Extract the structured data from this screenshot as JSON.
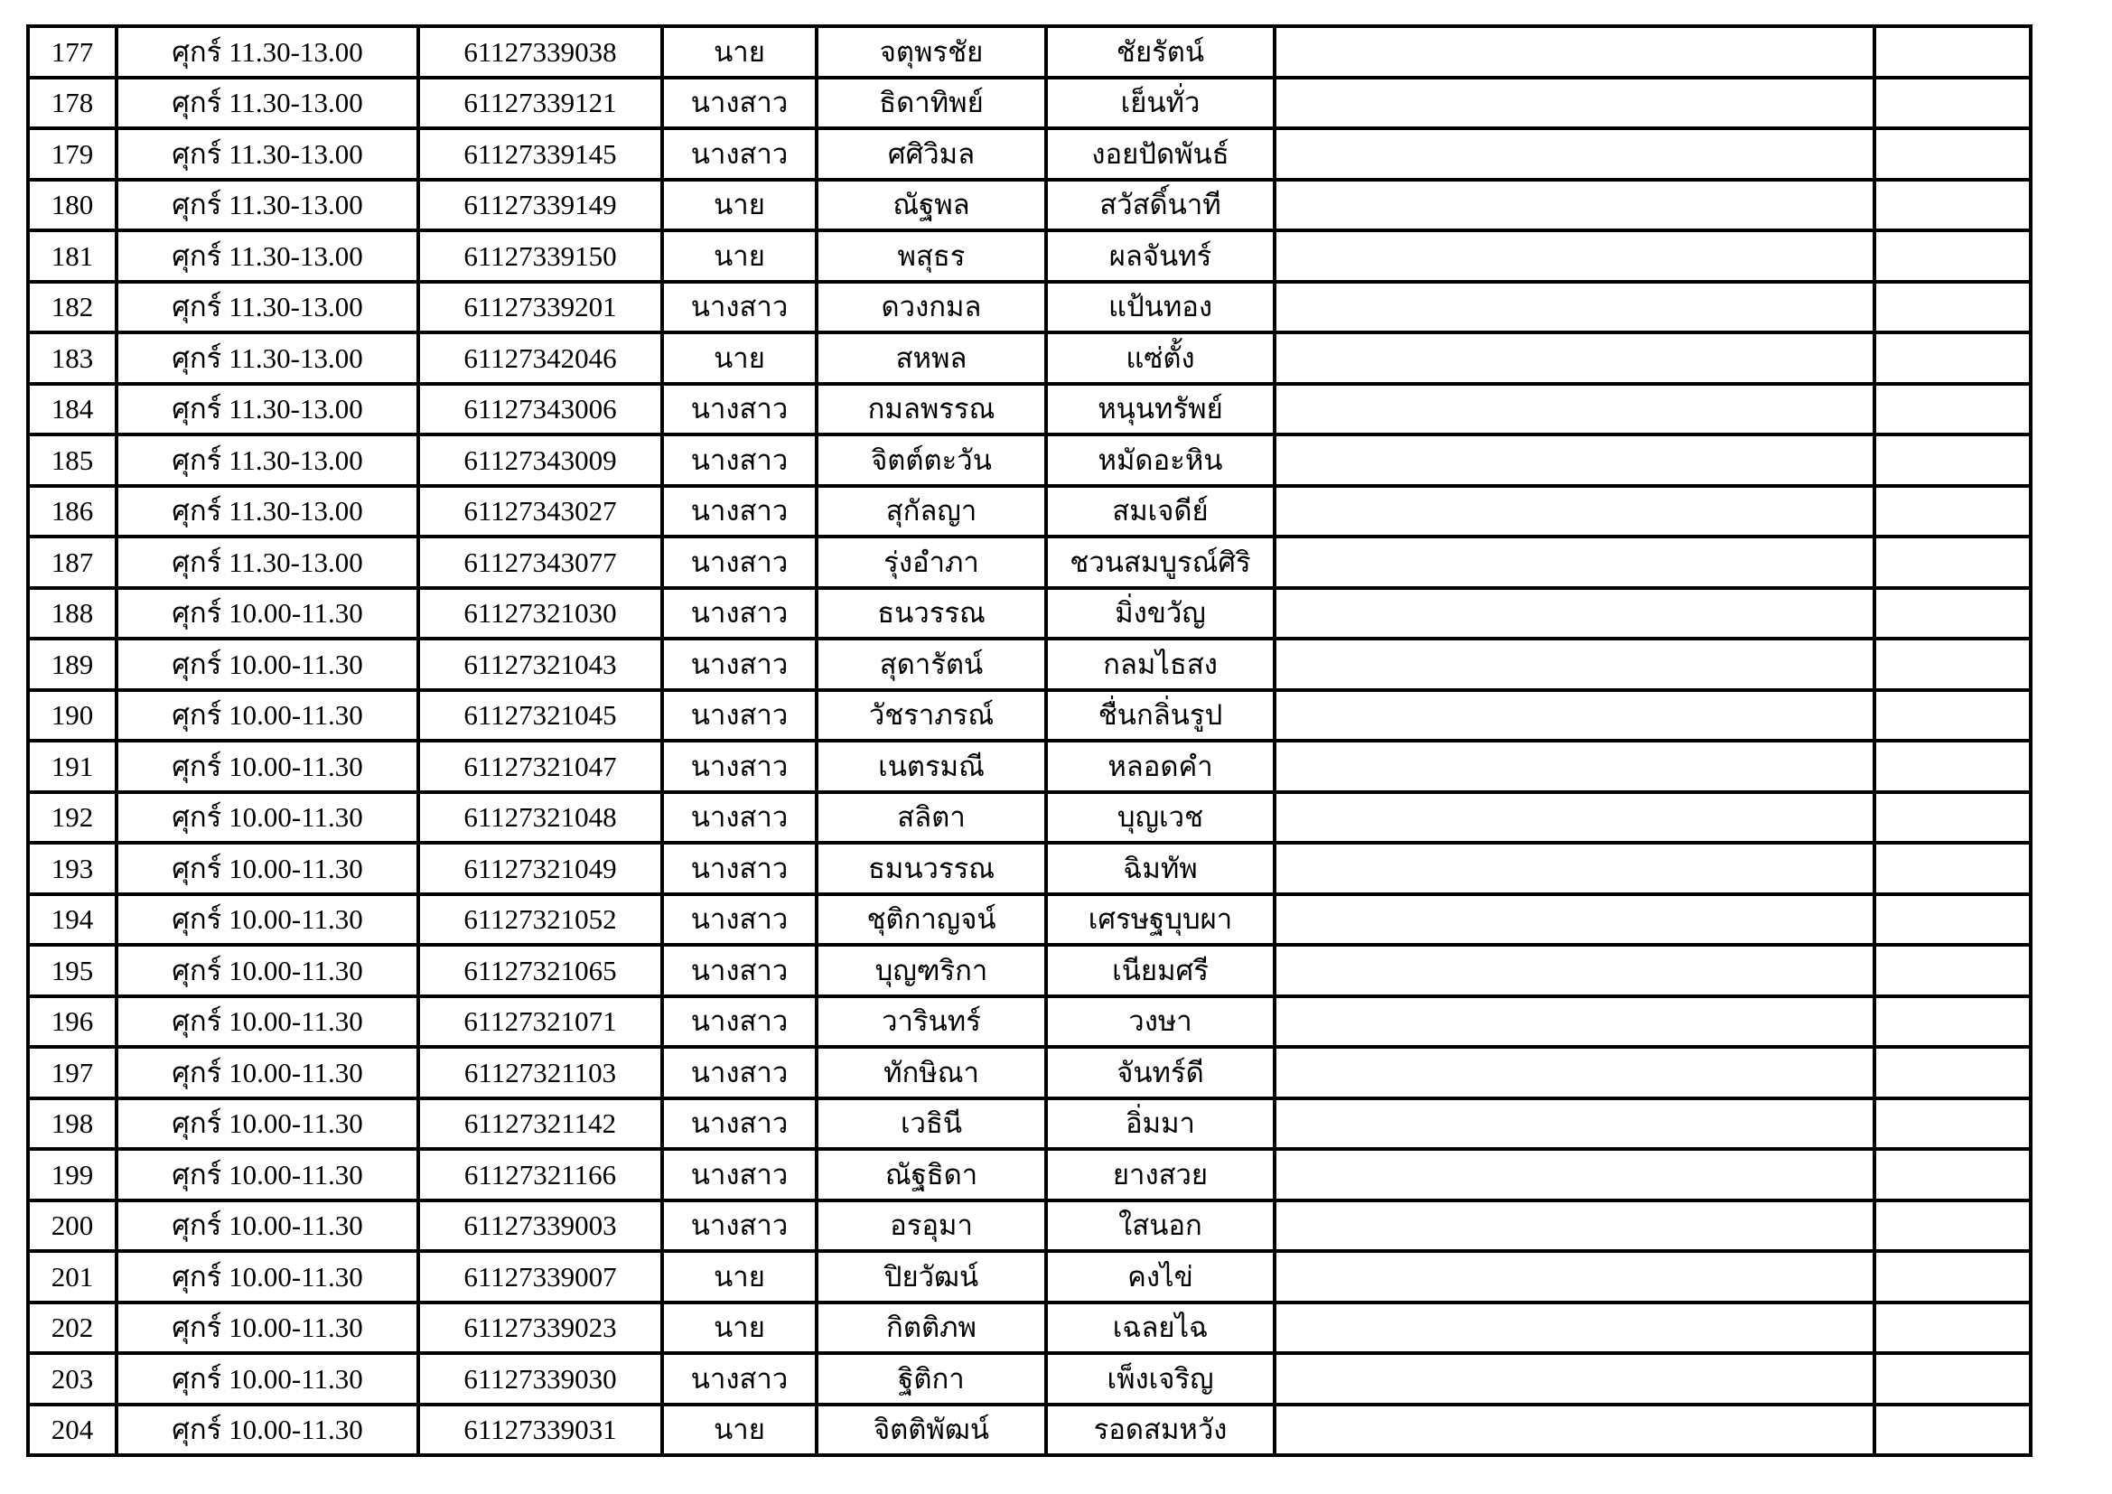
{
  "page": {
    "background_color": "#ffffff",
    "border_color": "#000000",
    "text_color": "#000000"
  },
  "table": {
    "columns": [
      {
        "key": "no",
        "name": "row-number-cell"
      },
      {
        "key": "schedule",
        "name": "day-time-cell"
      },
      {
        "key": "student_id",
        "name": "student-id-cell"
      },
      {
        "key": "title",
        "name": "title-prefix-cell"
      },
      {
        "key": "first_name",
        "name": "first-name-cell"
      },
      {
        "key": "last_name",
        "name": "last-name-cell"
      },
      {
        "key": "blank1",
        "name": "empty-wide-cell"
      },
      {
        "key": "blank2",
        "name": "empty-narrow-cell"
      }
    ],
    "rows": [
      {
        "no": "177",
        "schedule": "ศุกร์ 11.30-13.00",
        "student_id": "61127339038",
        "title": "นาย",
        "first_name": "จตุพรชัย",
        "last_name": "ชัยรัตน์",
        "blank1": "",
        "blank2": ""
      },
      {
        "no": "178",
        "schedule": "ศุกร์ 11.30-13.00",
        "student_id": "61127339121",
        "title": "นางสาว",
        "first_name": "ธิดาทิพย์",
        "last_name": "เย็นทั่ว",
        "blank1": "",
        "blank2": ""
      },
      {
        "no": "179",
        "schedule": "ศุกร์ 11.30-13.00",
        "student_id": "61127339145",
        "title": "นางสาว",
        "first_name": "ศศิวิมล",
        "last_name": "งอยปัดพันธ์",
        "blank1": "",
        "blank2": ""
      },
      {
        "no": "180",
        "schedule": "ศุกร์ 11.30-13.00",
        "student_id": "61127339149",
        "title": "นาย",
        "first_name": "ณัฐพล",
        "last_name": "สวัสดิ์นาที",
        "blank1": "",
        "blank2": ""
      },
      {
        "no": "181",
        "schedule": "ศุกร์ 11.30-13.00",
        "student_id": "61127339150",
        "title": "นาย",
        "first_name": "พสุธร",
        "last_name": "ผลจันทร์",
        "blank1": "",
        "blank2": ""
      },
      {
        "no": "182",
        "schedule": "ศุกร์ 11.30-13.00",
        "student_id": "61127339201",
        "title": "นางสาว",
        "first_name": "ดวงกมล",
        "last_name": "แป้นทอง",
        "blank1": "",
        "blank2": ""
      },
      {
        "no": "183",
        "schedule": "ศุกร์ 11.30-13.00",
        "student_id": "61127342046",
        "title": "นาย",
        "first_name": "สหพล",
        "last_name": "แซ่ตั้ง",
        "blank1": "",
        "blank2": ""
      },
      {
        "no": "184",
        "schedule": "ศุกร์ 11.30-13.00",
        "student_id": "61127343006",
        "title": "นางสาว",
        "first_name": "กมลพรรณ",
        "last_name": "หนุนทรัพย์",
        "blank1": "",
        "blank2": ""
      },
      {
        "no": "185",
        "schedule": "ศุกร์ 11.30-13.00",
        "student_id": "61127343009",
        "title": "นางสาว",
        "first_name": "จิตต์ตะวัน",
        "last_name": "หมัดอะหิน",
        "blank1": "",
        "blank2": ""
      },
      {
        "no": "186",
        "schedule": "ศุกร์ 11.30-13.00",
        "student_id": "61127343027",
        "title": "นางสาว",
        "first_name": "สุกัลญา",
        "last_name": "สมเจดีย์",
        "blank1": "",
        "blank2": ""
      },
      {
        "no": "187",
        "schedule": "ศุกร์ 11.30-13.00",
        "student_id": "61127343077",
        "title": "นางสาว",
        "first_name": "รุ่งอำภา",
        "last_name": "ชวนสมบูรณ์ศิริ",
        "blank1": "",
        "blank2": ""
      },
      {
        "no": "188",
        "schedule": "ศุกร์ 10.00-11.30",
        "student_id": "61127321030",
        "title": "นางสาว",
        "first_name": "ธนวรรณ",
        "last_name": "มิ่งขวัญ",
        "blank1": "",
        "blank2": ""
      },
      {
        "no": "189",
        "schedule": "ศุกร์ 10.00-11.30",
        "student_id": "61127321043",
        "title": "นางสาว",
        "first_name": "สุดารัตน์",
        "last_name": "กลมไธสง",
        "blank1": "",
        "blank2": ""
      },
      {
        "no": "190",
        "schedule": "ศุกร์ 10.00-11.30",
        "student_id": "61127321045",
        "title": "นางสาว",
        "first_name": "วัชราภรณ์",
        "last_name": "ชื่นกลิ่นรูป",
        "blank1": "",
        "blank2": ""
      },
      {
        "no": "191",
        "schedule": "ศุกร์ 10.00-11.30",
        "student_id": "61127321047",
        "title": "นางสาว",
        "first_name": "เนตรมณี",
        "last_name": "หลอดคำ",
        "blank1": "",
        "blank2": ""
      },
      {
        "no": "192",
        "schedule": "ศุกร์ 10.00-11.30",
        "student_id": "61127321048",
        "title": "นางสาว",
        "first_name": "สลิตา",
        "last_name": "บุญเวช",
        "blank1": "",
        "blank2": ""
      },
      {
        "no": "193",
        "schedule": "ศุกร์ 10.00-11.30",
        "student_id": "61127321049",
        "title": "นางสาว",
        "first_name": "ธมนวรรณ",
        "last_name": "ฉิมทัพ",
        "blank1": "",
        "blank2": ""
      },
      {
        "no": "194",
        "schedule": "ศุกร์ 10.00-11.30",
        "student_id": "61127321052",
        "title": "นางสาว",
        "first_name": "ชุติกาญจน์",
        "last_name": "เศรษฐบุบผา",
        "blank1": "",
        "blank2": ""
      },
      {
        "no": "195",
        "schedule": "ศุกร์ 10.00-11.30",
        "student_id": "61127321065",
        "title": "นางสาว",
        "first_name": "บุญฑริกา",
        "last_name": "เนียมศรี",
        "blank1": "",
        "blank2": ""
      },
      {
        "no": "196",
        "schedule": "ศุกร์ 10.00-11.30",
        "student_id": "61127321071",
        "title": "นางสาว",
        "first_name": "วารินทร์",
        "last_name": "วงษา",
        "blank1": "",
        "blank2": ""
      },
      {
        "no": "197",
        "schedule": "ศุกร์ 10.00-11.30",
        "student_id": "61127321103",
        "title": "นางสาว",
        "first_name": "ทักษิณา",
        "last_name": "จันทร์ดี",
        "blank1": "",
        "blank2": ""
      },
      {
        "no": "198",
        "schedule": "ศุกร์ 10.00-11.30",
        "student_id": "61127321142",
        "title": "นางสาว",
        "first_name": "เวธินี",
        "last_name": "อิ่มมา",
        "blank1": "",
        "blank2": ""
      },
      {
        "no": "199",
        "schedule": "ศุกร์ 10.00-11.30",
        "student_id": "61127321166",
        "title": "นางสาว",
        "first_name": "ณัฐธิดา",
        "last_name": "ยางสวย",
        "blank1": "",
        "blank2": ""
      },
      {
        "no": "200",
        "schedule": "ศุกร์ 10.00-11.30",
        "student_id": "61127339003",
        "title": "นางสาว",
        "first_name": "อรอุมา",
        "last_name": "ใสนอก",
        "blank1": "",
        "blank2": ""
      },
      {
        "no": "201",
        "schedule": "ศุกร์ 10.00-11.30",
        "student_id": "61127339007",
        "title": "นาย",
        "first_name": "ปิยวัฒน์",
        "last_name": "คงไข่",
        "blank1": "",
        "blank2": ""
      },
      {
        "no": "202",
        "schedule": "ศุกร์ 10.00-11.30",
        "student_id": "61127339023",
        "title": "นาย",
        "first_name": "กิตติภพ",
        "last_name": "เฉลยไฉ",
        "blank1": "",
        "blank2": ""
      },
      {
        "no": "203",
        "schedule": "ศุกร์ 10.00-11.30",
        "student_id": "61127339030",
        "title": "นางสาว",
        "first_name": "ฐิติกา",
        "last_name": "เพ็งเจริญ",
        "blank1": "",
        "blank2": ""
      },
      {
        "no": "204",
        "schedule": "ศุกร์ 10.00-11.30",
        "student_id": "61127339031",
        "title": "นาย",
        "first_name": "จิตติพัฒน์",
        "last_name": "รอดสมหวัง",
        "blank1": "",
        "blank2": ""
      }
    ]
  }
}
